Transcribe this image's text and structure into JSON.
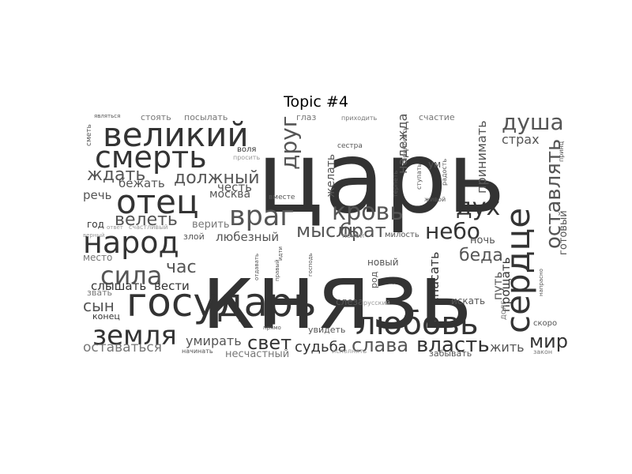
{
  "figure": {
    "title": "Topic #4"
  },
  "palette": {
    "dark": "#333333",
    "mid": "#555555",
    "light": "#777777",
    "pale": "#999999"
  },
  "words": [
    "царь",
    "князь",
    "государь",
    "сердце",
    "любовь",
    "великий",
    "смерть",
    "отец",
    "народ",
    "земля",
    "враг",
    "душа",
    "оставлять",
    "кровь",
    "дух",
    "небо",
    "сила",
    "друг",
    "мысль",
    "брат",
    "слава",
    "власть",
    "свет",
    "судьба",
    "мир",
    "беда",
    "ждать",
    "должный",
    "велеть",
    "час",
    "любезный",
    "спасать",
    "прощать",
    "принимать",
    "надежда",
    "желать",
    "честь",
    "москва",
    "страх",
    "путь",
    "сын",
    "оставаться",
    "умирать",
    "несчастный",
    "жить",
    "ночь",
    "готовый",
    "речь",
    "бежать",
    "верить",
    "слышать",
    "вести",
    "год",
    "место",
    "звать",
    "конец",
    "стоять",
    "посылать",
    "глаз",
    "приходить",
    "счастие",
    "сметь",
    "являться",
    "сестра",
    "воля",
    "просить",
    "вместе",
    "новый",
    "лицо",
    "род",
    "слеза",
    "русский",
    "увидеть",
    "искать",
    "долг",
    "скоро",
    "забывать",
    "закон",
    "начинать",
    "исполнять",
    "милость",
    "покой",
    "злой",
    "живой",
    "ум",
    "радость",
    "ступать",
    "терпеть",
    "приносить",
    "напрасно",
    "прямо",
    "счастливый",
    "верный",
    "ответ",
    "господь",
    "отдавать",
    "правый",
    "идти",
    "принц"
  ]
}
